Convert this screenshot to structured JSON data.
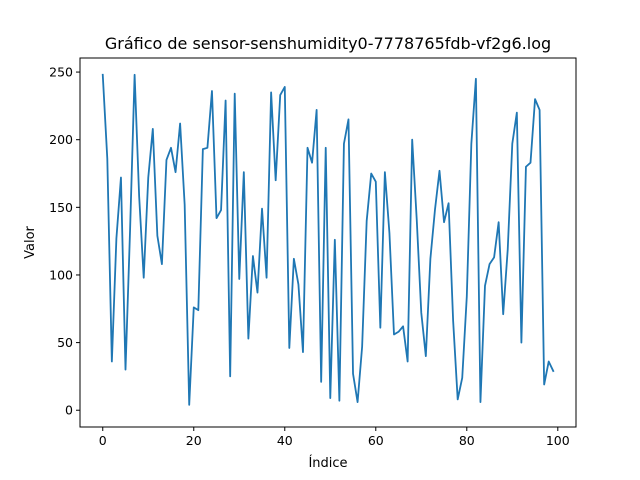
{
  "chart_data": {
    "type": "line",
    "title": "Gráfico de sensor-senshumidity0-7778765fdb-vf2g6.log",
    "xlabel": "Índice",
    "ylabel": "Valor",
    "xlim": [
      -5,
      104
    ],
    "ylim": [
      -12.4,
      260.4
    ],
    "xticks": [
      0,
      20,
      40,
      60,
      80,
      100
    ],
    "yticks": [
      0,
      50,
      100,
      150,
      200,
      250
    ],
    "grid": false,
    "legend": "none",
    "line_color": "#1f77b4",
    "series": [
      {
        "x": [
          0,
          1,
          2,
          3,
          4,
          5,
          6,
          7,
          8,
          9,
          10,
          11,
          12,
          13,
          14,
          15,
          16,
          17,
          18,
          19,
          20,
          21,
          22,
          23,
          24,
          25,
          26,
          27,
          28,
          29,
          30,
          31,
          32,
          33,
          34,
          35,
          36,
          37,
          38,
          39,
          40,
          41,
          42,
          43,
          44,
          45,
          46,
          47,
          48,
          49,
          50,
          51,
          52,
          53,
          54,
          55,
          56,
          57,
          58,
          59,
          60,
          61,
          62,
          63,
          64,
          65,
          66,
          67,
          68,
          69,
          70,
          71,
          72,
          73,
          74,
          75,
          76,
          77,
          78,
          79,
          80,
          81,
          82,
          83,
          84,
          85,
          86,
          87,
          88,
          89,
          90,
          91,
          92,
          93,
          94,
          95,
          96,
          97,
          98,
          99
        ],
        "values": [
          248,
          186,
          36,
          127,
          172,
          30,
          133,
          248,
          158,
          98,
          172,
          208,
          129,
          108,
          185,
          194,
          176,
          212,
          152,
          4,
          76,
          74,
          193,
          194,
          236,
          142,
          148,
          229,
          25,
          234,
          97,
          176,
          53,
          114,
          87,
          149,
          98,
          235,
          170,
          233,
          239,
          46,
          112,
          93,
          43,
          194,
          183,
          222,
          21,
          194,
          9,
          126,
          7,
          197,
          215,
          27,
          6,
          47,
          140,
          175,
          169,
          61,
          176,
          131,
          56,
          58,
          62,
          36,
          200,
          141,
          72,
          40,
          112,
          148,
          177,
          139,
          153,
          66,
          8,
          24,
          84,
          197,
          245,
          6,
          92,
          108,
          113,
          139,
          71,
          119,
          197,
          220,
          50,
          180,
          183,
          230,
          222,
          19,
          36,
          29
        ]
      }
    ]
  }
}
